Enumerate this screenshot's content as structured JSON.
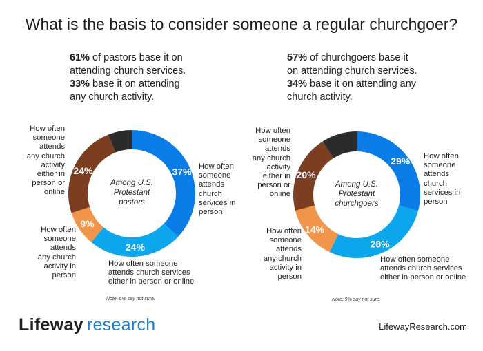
{
  "title": "What is the basis to consider someone a regular churchgoer?",
  "summaries": [
    {
      "b1": "61%",
      "t1": " of pastors base it on",
      "t2": "attending church services.",
      "b2": "33%",
      "t3": " base it on attending",
      "t4": "any church activity."
    },
    {
      "b1": "57%",
      "t1": " of churchgoers base it",
      "t2": "on attending church services.",
      "b2": "34%",
      "t3": " base it on attending any",
      "t4": "church activity."
    }
  ],
  "chart_data": [
    {
      "type": "pie",
      "donut": true,
      "center_label": [
        "Among U.S.",
        "Protestant",
        "pastors"
      ],
      "categories": [
        "How often someone attends church services in person",
        "How often someone attends church services either in person or online",
        "How often someone attends any church activity in person",
        "How often someone attends any church activity either in person or online",
        "Not sure"
      ],
      "values": [
        37,
        24,
        9,
        24,
        6
      ],
      "value_labels": [
        "37%",
        "24%",
        "9%",
        "24%",
        ""
      ],
      "colors": [
        "#0a7ce8",
        "#0ba6ec",
        "#f0954a",
        "#7b3e20",
        "#2b2b2b"
      ],
      "note": "Note: 6% say not sure."
    },
    {
      "type": "pie",
      "donut": true,
      "center_label": [
        "Among U.S.",
        "Protestant",
        "churchgoers"
      ],
      "categories": [
        "How often someone attends church services in person",
        "How often someone attends church services either in person or online",
        "How often someone attends any church activity in person",
        "How often someone attends any church activity either in person or online",
        "Not sure"
      ],
      "values": [
        29,
        28,
        14,
        20,
        9
      ],
      "value_labels": [
        "29%",
        "28%",
        "14%",
        "20%",
        ""
      ],
      "colors": [
        "#0a7ce8",
        "#0ba6ec",
        "#f0954a",
        "#7b3e20",
        "#2b2b2b"
      ],
      "note": "Note: 9% say not sure."
    }
  ],
  "labels": {
    "left": {
      "a": [
        "How often",
        "someone",
        "attends",
        "church",
        "services in",
        "person"
      ],
      "b": [
        "How often someone",
        "attends church services",
        "either in person or online"
      ],
      "c": [
        "How often",
        "someone",
        "attends",
        "any church",
        "activity in",
        "person"
      ],
      "d": [
        "How often",
        "someone",
        "attends",
        "any church",
        "activity",
        "either in",
        "person or",
        "online"
      ]
    },
    "right": {
      "a": [
        "How often",
        "someone",
        "attends",
        "church",
        "services in",
        "person"
      ],
      "b": [
        "How often someone",
        "attends church services",
        "either in person or online"
      ],
      "c": [
        "How often",
        "someone",
        "attends",
        "any church",
        "activity in",
        "person"
      ],
      "d": [
        "How often",
        "someone",
        "attends",
        "any church",
        "activity",
        "either in",
        "person or",
        "online"
      ]
    }
  },
  "footer": {
    "logo_part1": "Lifeway",
    "logo_part2": "research",
    "website": "LifewayResearch.com"
  }
}
